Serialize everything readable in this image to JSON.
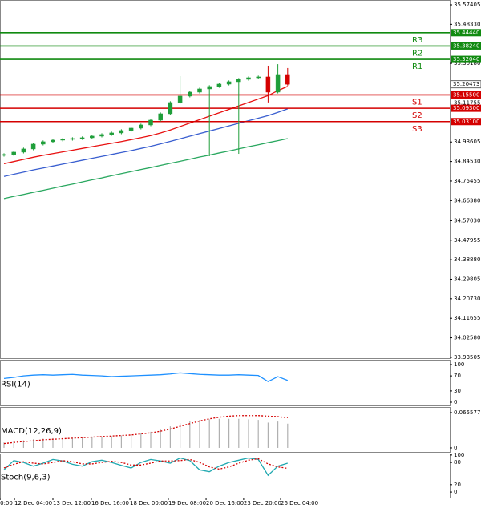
{
  "chart_data": [
    {
      "type": "candlestick",
      "open": [
        34.874,
        34.8776,
        34.8888,
        34.9037,
        34.926,
        34.9372,
        34.9446,
        34.9484,
        34.9521,
        34.9558,
        34.9633,
        34.9707,
        34.9782,
        34.9893,
        35.0005,
        35.0154,
        35.0377,
        35.0675,
        35.1197,
        35.1495,
        35.1681,
        35.183,
        35.1942,
        35.2053,
        35.2165,
        35.2277,
        35.2351,
        35.2389,
        35.1681,
        35.25
      ],
      "high": [
        34.8836,
        34.8948,
        34.9097,
        34.932,
        34.9432,
        34.9506,
        34.9544,
        34.9581,
        34.9618,
        34.9693,
        34.9767,
        34.9842,
        34.9953,
        35.0065,
        35.0214,
        35.0437,
        35.0735,
        35.1257,
        35.2426,
        35.1741,
        35.189,
        35.2002,
        35.2113,
        35.2225,
        35.2337,
        35.2411,
        35.2449,
        35.291,
        35.298,
        35.28
      ],
      "low": [
        34.868,
        34.8716,
        34.8828,
        34.8977,
        34.92,
        34.9312,
        34.9386,
        34.9424,
        34.9461,
        34.9498,
        34.9573,
        34.9647,
        34.9722,
        34.9833,
        34.9945,
        35.0094,
        35.0317,
        35.0615,
        35.1137,
        35.1435,
        35.1621,
        34.87,
        35.1882,
        35.1993,
        34.881,
        35.2217,
        35.2291,
        35.12,
        35.1621,
        35.1987
      ],
      "close": [
        34.8776,
        34.8888,
        34.9037,
        34.926,
        34.9372,
        34.9446,
        34.9484,
        34.9521,
        34.9558,
        34.9633,
        34.9707,
        34.9782,
        34.9893,
        35.0005,
        35.0154,
        35.0377,
        35.0675,
        35.1197,
        35.1495,
        35.1681,
        35.183,
        35.1942,
        35.2053,
        35.2165,
        35.2277,
        35.2351,
        35.2389,
        35.1681,
        35.25,
        35.20473
      ],
      "up_color": "#1f9e3a",
      "down_color": "#d40000",
      "series": [
        {
          "color": "#e81010",
          "values": [
            34.835,
            34.845,
            34.855,
            34.865,
            34.874,
            34.882,
            34.89,
            34.898,
            34.906,
            34.914,
            34.922,
            34.93,
            34.938,
            34.947,
            34.956,
            34.966,
            34.978,
            34.992,
            35.008,
            35.024,
            35.04,
            35.056,
            35.072,
            35.088,
            35.104,
            35.12,
            35.136,
            35.152,
            35.175,
            35.195
          ]
        },
        {
          "color": "#3a5fd0",
          "values": [
            34.776,
            34.786,
            34.796,
            34.806,
            34.815,
            34.824,
            34.833,
            34.842,
            34.851,
            34.86,
            34.869,
            34.878,
            34.887,
            34.896,
            34.906,
            34.916,
            34.927,
            34.939,
            34.951,
            34.963,
            34.975,
            34.987,
            34.999,
            35.011,
            35.023,
            35.035,
            35.047,
            35.059,
            35.074,
            35.09
          ]
        },
        {
          "color": "#2aa860",
          "values": [
            34.673,
            34.683,
            34.692,
            34.702,
            34.711,
            34.721,
            34.731,
            34.74,
            34.75,
            34.76,
            34.769,
            34.779,
            34.789,
            34.798,
            34.808,
            34.817,
            34.827,
            34.837,
            34.846,
            34.856,
            34.866,
            34.875,
            34.885,
            34.894,
            34.904,
            34.914,
            34.923,
            34.933,
            34.942,
            34.952
          ]
        }
      ],
      "levels": [
        {
          "name": "R3",
          "value": 35.4444,
          "label": "35.44440",
          "color": "#108a10"
        },
        {
          "name": "R2",
          "value": 35.3824,
          "label": "35.38240",
          "color": "#108a10"
        },
        {
          "name": "R1",
          "value": 35.3204,
          "label": "35.32040",
          "color": "#108a10"
        },
        {
          "name": "S1",
          "value": 35.155,
          "label": "35.15500",
          "color": "#d40000"
        },
        {
          "name": "S2",
          "value": 35.093,
          "label": "35.09300",
          "color": "#d40000"
        },
        {
          "name": "S3",
          "value": 35.031,
          "label": "35.03100",
          "color": "#d40000"
        }
      ],
      "last": {
        "value": 35.20473,
        "label": "35.20473"
      },
      "ylim": [
        33.931,
        35.5964
      ],
      "yticks": [
        35.57405,
        {
          "value": 35.4833,
          "label": "35.48330"
        },
        {
          "value": 35.3018,
          "label": "35.30180"
        },
        35.11755,
        34.93605,
        {
          "value": 34.8453,
          "label": "34.84530"
        },
        34.75455,
        {
          "value": 34.6638,
          "label": "34.66380"
        },
        {
          "value": 34.5703,
          "label": "34.57030"
        },
        34.47955,
        {
          "value": 34.3888,
          "label": "34.38880"
        },
        34.29805,
        {
          "value": 34.2073,
          "label": "34.20730"
        },
        34.11655,
        {
          "value": 34.0258,
          "label": "34.02580"
        },
        33.93505
      ],
      "xticks": [
        {
          "value": -0.4,
          "label": "0:00"
        },
        {
          "value": 1.07,
          "label": "12 Dec 04:00"
        },
        {
          "value": 5.0,
          "label": "13 Dec 12:00"
        },
        {
          "value": 8.93,
          "label": "16 Dec 16:00"
        },
        {
          "value": 12.87,
          "label": "18 Dec 00:00"
        },
        {
          "value": 16.8,
          "label": "19 Dec 08:00"
        },
        {
          "value": 20.66,
          "label": "20 Dec 16:00"
        },
        {
          "value": 24.5,
          "label": "23 Dec 20:00"
        },
        {
          "value": 28.28,
          "label": "26 Dec 04:00"
        }
      ]
    },
    {
      "type": "line",
      "title": "RSI(14)",
      "ylim": [
        -8.5,
        112.8
      ],
      "yticks": [
        100,
        70,
        30,
        0
      ],
      "series": [
        {
          "color": "#1e90ff",
          "values": [
            63,
            66,
            70,
            72,
            73,
            72,
            73,
            74,
            72,
            71,
            70,
            68,
            69,
            70,
            71,
            72,
            73,
            75,
            78,
            76,
            74,
            73,
            72,
            72,
            73,
            72,
            71,
            55,
            68,
            58
          ]
        }
      ]
    },
    {
      "type": "macd",
      "title": "MACD(12,26,9)",
      "ylim": [
        -0.0075,
        0.076
      ],
      "yticks": [
        0.065577,
        0
      ],
      "values": [
        0.01,
        0.012,
        0.014,
        0.016,
        0.017,
        0.018,
        0.018,
        0.019,
        0.019,
        0.02,
        0.021,
        0.022,
        0.023,
        0.025,
        0.027,
        0.03,
        0.034,
        0.04,
        0.046,
        0.05,
        0.052,
        0.053,
        0.054,
        0.054,
        0.054,
        0.053,
        0.052,
        0.047,
        0.049,
        0.045
      ],
      "color": "#b0b0b0",
      "series": [
        {
          "color": "#d40000",
          "dashed": true,
          "values": [
            0.008,
            0.01,
            0.012,
            0.013,
            0.015,
            0.016,
            0.017,
            0.018,
            0.019,
            0.02,
            0.021,
            0.022,
            0.023,
            0.024,
            0.026,
            0.028,
            0.031,
            0.035,
            0.04,
            0.045,
            0.05,
            0.054,
            0.057,
            0.059,
            0.06,
            0.06,
            0.06,
            0.059,
            0.058,
            0.056
          ]
        }
      ]
    },
    {
      "type": "line",
      "title": "Stoch(9,6,3)",
      "ylim": [
        -15,
        104
      ],
      "yticks": [
        100,
        80,
        20,
        0
      ],
      "series": [
        {
          "color": "#20a8b0",
          "values": [
            60,
            85,
            80,
            70,
            78,
            88,
            84,
            75,
            70,
            82,
            86,
            80,
            72,
            65,
            80,
            88,
            84,
            78,
            92,
            85,
            60,
            55,
            70,
            80,
            86,
            92,
            88,
            45,
            70,
            78
          ]
        },
        {
          "color": "#d40000",
          "dashed": true,
          "values": [
            65,
            75,
            82,
            78,
            76,
            80,
            85,
            82,
            76,
            76,
            80,
            83,
            80,
            73,
            73,
            78,
            84,
            84,
            85,
            88,
            80,
            68,
            62,
            68,
            78,
            86,
            90,
            76,
            68,
            64
          ]
        }
      ]
    }
  ]
}
